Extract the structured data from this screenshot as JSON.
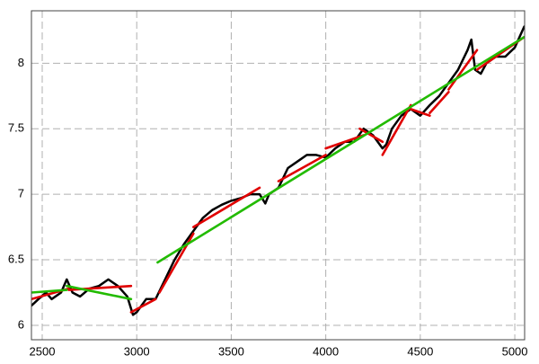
{
  "chart_data": {
    "type": "line",
    "xlim": [
      2443,
      5052
    ],
    "ylim": [
      5.89,
      8.4
    ],
    "xticks": [
      2500,
      3000,
      3500,
      4000,
      4500,
      5000
    ],
    "yticks": [
      6,
      6.5,
      7,
      7.5,
      8
    ],
    "grid": true,
    "series": [
      {
        "color": "#000000",
        "x": [
          2443,
          2480,
          2520,
          2550,
          2600,
          2630,
          2660,
          2700,
          2750,
          2800,
          2850,
          2900,
          2950,
          2980,
          3000,
          3050,
          3100,
          3150,
          3200,
          3250,
          3300,
          3350,
          3400,
          3450,
          3500,
          3550,
          3600,
          3650,
          3680,
          3700,
          3750,
          3800,
          3850,
          3900,
          3950,
          4000,
          4050,
          4100,
          4150,
          4200,
          4250,
          4300,
          4320,
          4350,
          4400,
          4450,
          4500,
          4550,
          4600,
          4650,
          4700,
          4750,
          4770,
          4790,
          4820,
          4850,
          4900,
          4950,
          5000,
          5050
        ],
        "values": [
          6.15,
          6.2,
          6.25,
          6.2,
          6.25,
          6.35,
          6.25,
          6.22,
          6.28,
          6.3,
          6.35,
          6.3,
          6.22,
          6.08,
          6.1,
          6.2,
          6.2,
          6.35,
          6.5,
          6.62,
          6.72,
          6.82,
          6.88,
          6.92,
          6.95,
          6.97,
          7.0,
          7.0,
          6.93,
          7.0,
          7.05,
          7.2,
          7.25,
          7.3,
          7.3,
          7.28,
          7.35,
          7.4,
          7.4,
          7.5,
          7.45,
          7.35,
          7.38,
          7.5,
          7.6,
          7.65,
          7.6,
          7.68,
          7.75,
          7.85,
          7.95,
          8.1,
          8.18,
          7.95,
          7.92,
          8.0,
          8.05,
          8.05,
          8.12,
          8.28
        ]
      },
      {
        "color": "#e00000",
        "x": [
          2443,
          2640
        ],
        "values": [
          6.2,
          6.28
        ]
      },
      {
        "color": "#e00000",
        "x": [
          2640,
          2970
        ],
        "values": [
          6.27,
          6.3
        ]
      },
      {
        "color": "#e00000",
        "x": [
          2970,
          3100
        ],
        "values": [
          6.1,
          6.2
        ]
      },
      {
        "color": "#e00000",
        "x": [
          3120,
          3300
        ],
        "values": [
          6.25,
          6.7
        ]
      },
      {
        "color": "#e00000",
        "x": [
          3300,
          3650
        ],
        "values": [
          6.75,
          7.05
        ]
      },
      {
        "color": "#e00000",
        "x": [
          3750,
          4000
        ],
        "values": [
          7.1,
          7.3
        ]
      },
      {
        "color": "#e00000",
        "x": [
          4000,
          4200
        ],
        "values": [
          7.35,
          7.45
        ]
      },
      {
        "color": "#e00000",
        "x": [
          4180,
          4300
        ],
        "values": [
          7.5,
          7.4
        ]
      },
      {
        "color": "#e00000",
        "x": [
          4300,
          4450
        ],
        "values": [
          7.3,
          7.68
        ]
      },
      {
        "color": "#e00000",
        "x": [
          4450,
          4550
        ],
        "values": [
          7.65,
          7.6
        ]
      },
      {
        "color": "#e00000",
        "x": [
          4550,
          4650
        ],
        "values": [
          7.62,
          7.78
        ]
      },
      {
        "color": "#e00000",
        "x": [
          4650,
          4800
        ],
        "values": [
          7.8,
          8.1
        ]
      },
      {
        "color": "#e00000",
        "x": [
          4800,
          5050
        ],
        "values": [
          7.95,
          8.2
        ]
      },
      {
        "color": "#22bb00",
        "x": [
          2443,
          2630
        ],
        "values": [
          6.25,
          6.27
        ]
      },
      {
        "color": "#22bb00",
        "x": [
          2630,
          2970
        ],
        "values": [
          6.3,
          6.2
        ]
      },
      {
        "color": "#22bb00",
        "x": [
          3110,
          5050
        ],
        "values": [
          6.48,
          8.2
        ]
      }
    ]
  }
}
